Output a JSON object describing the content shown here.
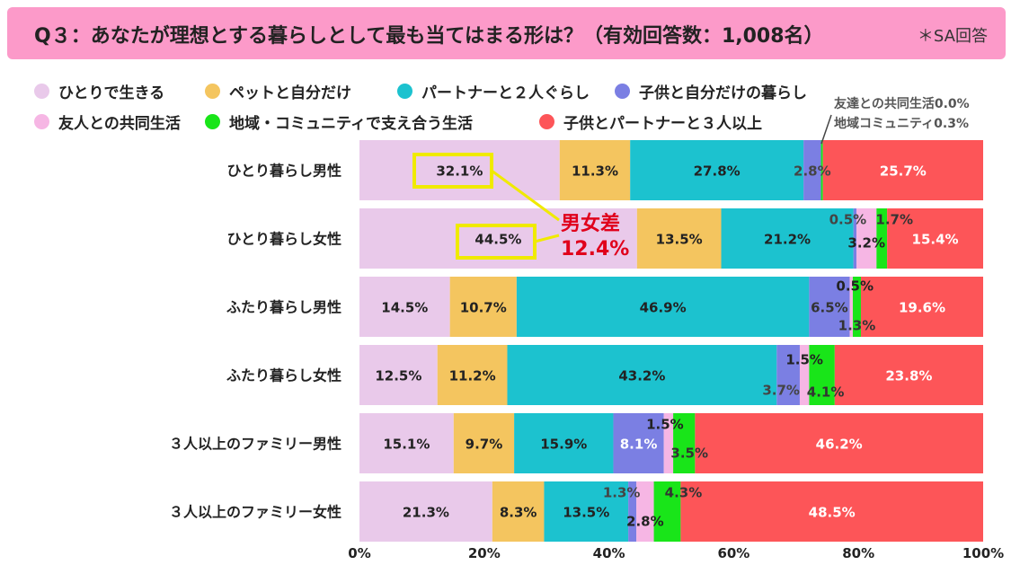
{
  "title": "Q３：あなたが理想とする暮らしとして最も当てはまる形は？（有効回答数：1,008名）",
  "note": "＊SA回答",
  "small_note_1": "友達との共同生活0.0%",
  "small_note_2": "地域コミュニティ0.3%",
  "diff_label_1": "男女差",
  "diff_label_2": "12.4%",
  "colors": {
    "series": [
      "#e9c9ea",
      "#f4c55f",
      "#1cc2cf",
      "#7b7fe3",
      "#f6b6e4",
      "#19e519",
      "#fd5558"
    ]
  },
  "chart_data": {
    "type": "bar",
    "orientation": "horizontal",
    "stacked": true,
    "title": "",
    "xlabel": "",
    "ylabel": "",
    "xlim": [
      0,
      100
    ],
    "x_ticks": [
      "0%",
      "20%",
      "40%",
      "60%",
      "80%",
      "100%"
    ],
    "categories": [
      "ひとり暮らし男性",
      "ひとり暮らし女性",
      "ふたり暮らし男性",
      "ふたり暮らし女性",
      "３人以上のファミリー男性",
      "３人以上のファミリー女性"
    ],
    "series": [
      {
        "name": "ひとりで生きる",
        "values": [
          32.1,
          44.5,
          14.5,
          12.5,
          15.1,
          21.3
        ]
      },
      {
        "name": "ペットと自分だけ",
        "values": [
          11.3,
          13.5,
          10.7,
          11.2,
          9.7,
          8.3
        ]
      },
      {
        "name": "パートナーと２人ぐらし",
        "values": [
          27.8,
          21.2,
          46.9,
          43.2,
          15.9,
          13.5
        ]
      },
      {
        "name": "子供と自分だけの暮らし",
        "values": [
          2.8,
          0.5,
          6.5,
          3.7,
          8.1,
          1.3
        ]
      },
      {
        "name": "友人との共同生活",
        "values": [
          0.0,
          3.2,
          0.5,
          1.5,
          1.5,
          2.8
        ]
      },
      {
        "name": "地域・コミュニティで支え合う生活",
        "values": [
          0.3,
          1.7,
          1.3,
          4.1,
          3.5,
          4.3
        ]
      },
      {
        "name": "子供とパートナーと３人以上",
        "values": [
          25.7,
          15.4,
          19.6,
          23.8,
          46.2,
          48.5
        ]
      }
    ],
    "value_labels": [
      [
        "32.1%",
        "11.3%",
        "27.8%",
        "2.8%",
        "",
        "",
        "25.7%"
      ],
      [
        "44.5%",
        "13.5%",
        "21.2%",
        "0.5%",
        "3.2%",
        "1.7%",
        "15.4%"
      ],
      [
        "14.5%",
        "10.7%",
        "46.9%",
        "6.5%",
        "0.5%",
        "1.3%",
        "19.6%"
      ],
      [
        "12.5%",
        "11.2%",
        "43.2%",
        "3.7%",
        "1.5%",
        "4.1%",
        "23.8%"
      ],
      [
        "15.1%",
        "9.7%",
        "15.9%",
        "8.1%",
        "1.5%",
        "3.5%",
        "46.2%"
      ],
      [
        "21.3%",
        "8.3%",
        "13.5%",
        "1.3%",
        "2.8%",
        "4.3%",
        "48.5%"
      ]
    ],
    "legend_position": "top"
  }
}
